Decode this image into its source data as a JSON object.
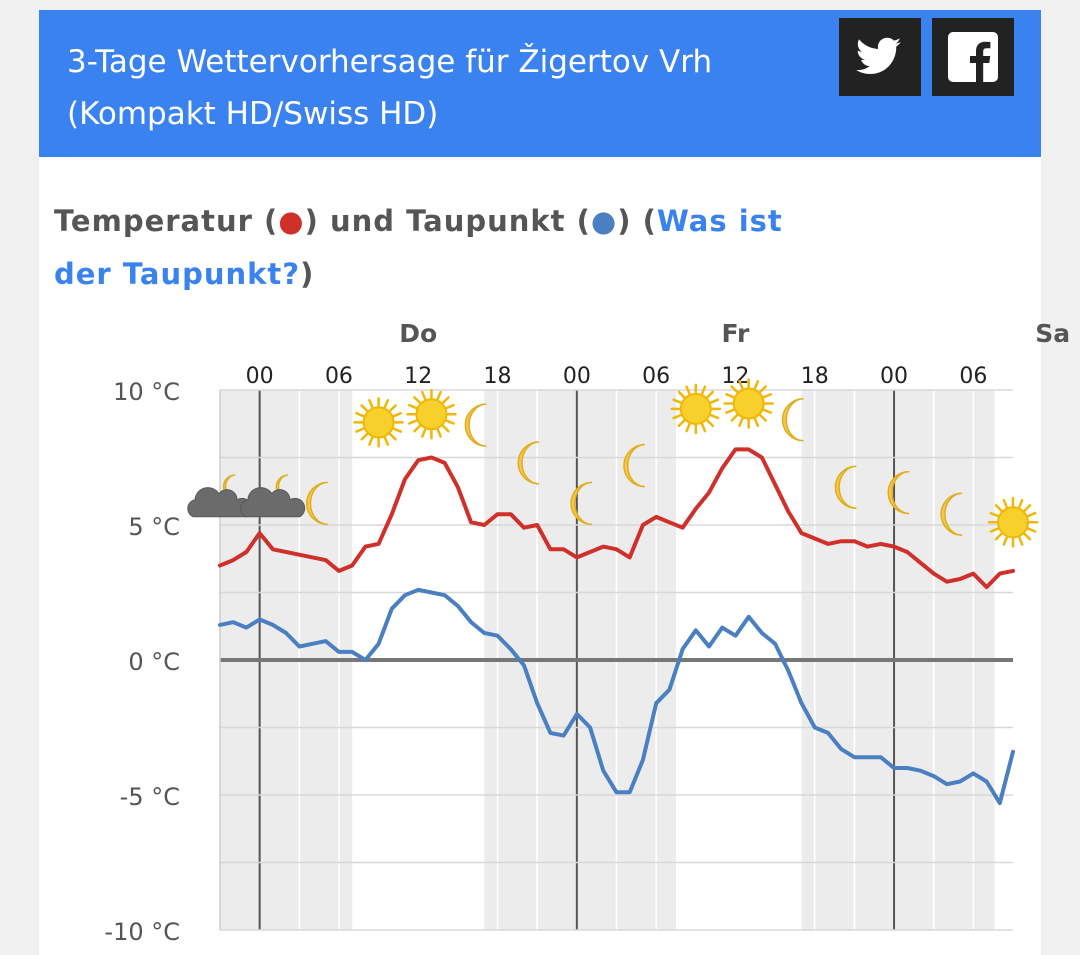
{
  "header": {
    "title": "3-Tage Wettervorhersage für Žigertov Vrh (Kompakt HD/Swiss HD)",
    "share_twitter_icon": "twitter-icon",
    "share_facebook_icon": "facebook-icon"
  },
  "section": {
    "heading_part1": "Temperatur (",
    "heading_dot1": "●",
    "heading_part2": ") und Taupunkt (",
    "heading_dot2": "●",
    "heading_part3": ") (",
    "heading_link": "Was ist der Taupunkt?",
    "heading_part4": ")"
  },
  "colors": {
    "header_bg": "#3b82f1",
    "temperature": "#d0302a",
    "dewpoint": "#4a7fc1",
    "link": "#3b82f1",
    "night_band": "#ececec"
  },
  "chart_data": {
    "type": "line",
    "x_unit": "hours from Wednesday 21:00",
    "day_labels": [
      {
        "label": "Do",
        "hour": 15
      },
      {
        "label": "Fr",
        "hour": 39
      },
      {
        "label": "Sa",
        "hour": 63
      }
    ],
    "hour_ticks": [
      {
        "label": "00",
        "hour": 3
      },
      {
        "label": "06",
        "hour": 9
      },
      {
        "label": "12",
        "hour": 15
      },
      {
        "label": "18",
        "hour": 21
      },
      {
        "label": "00",
        "hour": 27
      },
      {
        "label": "06",
        "hour": 33
      },
      {
        "label": "12",
        "hour": 39
      },
      {
        "label": "18",
        "hour": 45
      },
      {
        "label": "00",
        "hour": 51
      },
      {
        "label": "06",
        "hour": 57
      }
    ],
    "y_ticks": [
      "10 °C",
      "5 °C",
      "0 °C",
      "-5 °C",
      "-10 °C"
    ],
    "y_tick_values": [
      10,
      5,
      0,
      -5,
      -10
    ],
    "ylim": [
      -10,
      10
    ],
    "xlim": [
      0,
      60
    ],
    "night_bands": [
      [
        0,
        10
      ],
      [
        20,
        34.5
      ],
      [
        44,
        58.6
      ]
    ],
    "series": [
      {
        "name": "Temperatur",
        "color": "#d0302a",
        "x": [
          0,
          1,
          2,
          3,
          4,
          5,
          6,
          7,
          8,
          9,
          10,
          11,
          12,
          13,
          14,
          15,
          16,
          17,
          18,
          19,
          20,
          21,
          22,
          23,
          24,
          25,
          26,
          27,
          28,
          29,
          30,
          31,
          32,
          33,
          34,
          35,
          36,
          37,
          38,
          39,
          40,
          41,
          42,
          43,
          44,
          45,
          46,
          47,
          48,
          49,
          50,
          51,
          52,
          53,
          54,
          55,
          56,
          57,
          58,
          59,
          60
        ],
        "values": [
          3.5,
          3.7,
          4.0,
          4.7,
          4.1,
          4.0,
          3.9,
          3.8,
          3.7,
          3.3,
          3.5,
          4.2,
          4.3,
          5.4,
          6.7,
          7.4,
          7.5,
          7.3,
          6.4,
          5.1,
          5.0,
          5.4,
          5.4,
          4.9,
          5.0,
          4.1,
          4.1,
          3.8,
          4.0,
          4.2,
          4.1,
          3.8,
          5.0,
          5.3,
          5.1,
          4.9,
          5.6,
          6.2,
          7.1,
          7.8,
          7.8,
          7.5,
          6.5,
          5.5,
          4.7,
          4.5,
          4.3,
          4.4,
          4.4,
          4.2,
          4.3,
          4.2,
          4.0,
          3.6,
          3.2,
          2.9,
          3.0,
          3.2,
          2.7,
          3.2,
          3.3
        ]
      },
      {
        "name": "Taupunkt",
        "color": "#4a7fc1",
        "x": [
          0,
          1,
          2,
          3,
          4,
          5,
          6,
          7,
          8,
          9,
          10,
          11,
          12,
          13,
          14,
          15,
          16,
          17,
          18,
          19,
          20,
          21,
          22,
          23,
          24,
          25,
          26,
          27,
          28,
          29,
          30,
          31,
          32,
          33,
          34,
          35,
          36,
          37,
          38,
          39,
          40,
          41,
          42,
          43,
          44,
          45,
          46,
          47,
          48,
          49,
          50,
          51,
          52,
          53,
          54,
          55,
          56,
          57,
          58,
          59,
          60
        ],
        "values": [
          1.3,
          1.4,
          1.2,
          1.5,
          1.3,
          1.0,
          0.5,
          0.6,
          0.7,
          0.3,
          0.3,
          0.0,
          0.6,
          1.9,
          2.4,
          2.6,
          2.5,
          2.4,
          2.0,
          1.4,
          1.0,
          0.9,
          0.4,
          -0.2,
          -1.6,
          -2.7,
          -2.8,
          -2.0,
          -2.5,
          -4.1,
          -4.9,
          -4.9,
          -3.7,
          -1.6,
          -1.1,
          0.4,
          1.1,
          0.5,
          1.2,
          0.9,
          1.6,
          1.0,
          0.6,
          -0.4,
          -1.6,
          -2.5,
          -2.7,
          -3.3,
          -3.6,
          -3.6,
          -3.6,
          -4.0,
          -4.0,
          -4.1,
          -4.3,
          -4.6,
          -4.5,
          -4.2,
          -4.5,
          -5.3,
          -3.4
        ]
      }
    ],
    "weather_icons": [
      {
        "type": "cloud-moon-icon",
        "hour": 0,
        "temp": 5.9
      },
      {
        "type": "cloud-moon-icon",
        "hour": 4,
        "temp": 5.9
      },
      {
        "type": "moon-icon",
        "hour": 8,
        "temp": 5.8
      },
      {
        "type": "sun-icon",
        "hour": 12,
        "temp": 8.8
      },
      {
        "type": "sun-icon",
        "hour": 16,
        "temp": 9.1
      },
      {
        "type": "moon-icon",
        "hour": 20,
        "temp": 8.7
      },
      {
        "type": "moon-icon",
        "hour": 24,
        "temp": 7.3
      },
      {
        "type": "moon-icon",
        "hour": 28,
        "temp": 5.8
      },
      {
        "type": "moon-icon",
        "hour": 32,
        "temp": 7.2
      },
      {
        "type": "sun-icon",
        "hour": 36,
        "temp": 9.3
      },
      {
        "type": "sun-icon",
        "hour": 40,
        "temp": 9.5
      },
      {
        "type": "moon-icon",
        "hour": 44,
        "temp": 8.9
      },
      {
        "type": "moon-icon",
        "hour": 48,
        "temp": 6.4
      },
      {
        "type": "moon-icon",
        "hour": 52,
        "temp": 6.2
      },
      {
        "type": "moon-icon",
        "hour": 56,
        "temp": 5.4
      },
      {
        "type": "sun-icon",
        "hour": 60,
        "temp": 5.1
      }
    ]
  }
}
